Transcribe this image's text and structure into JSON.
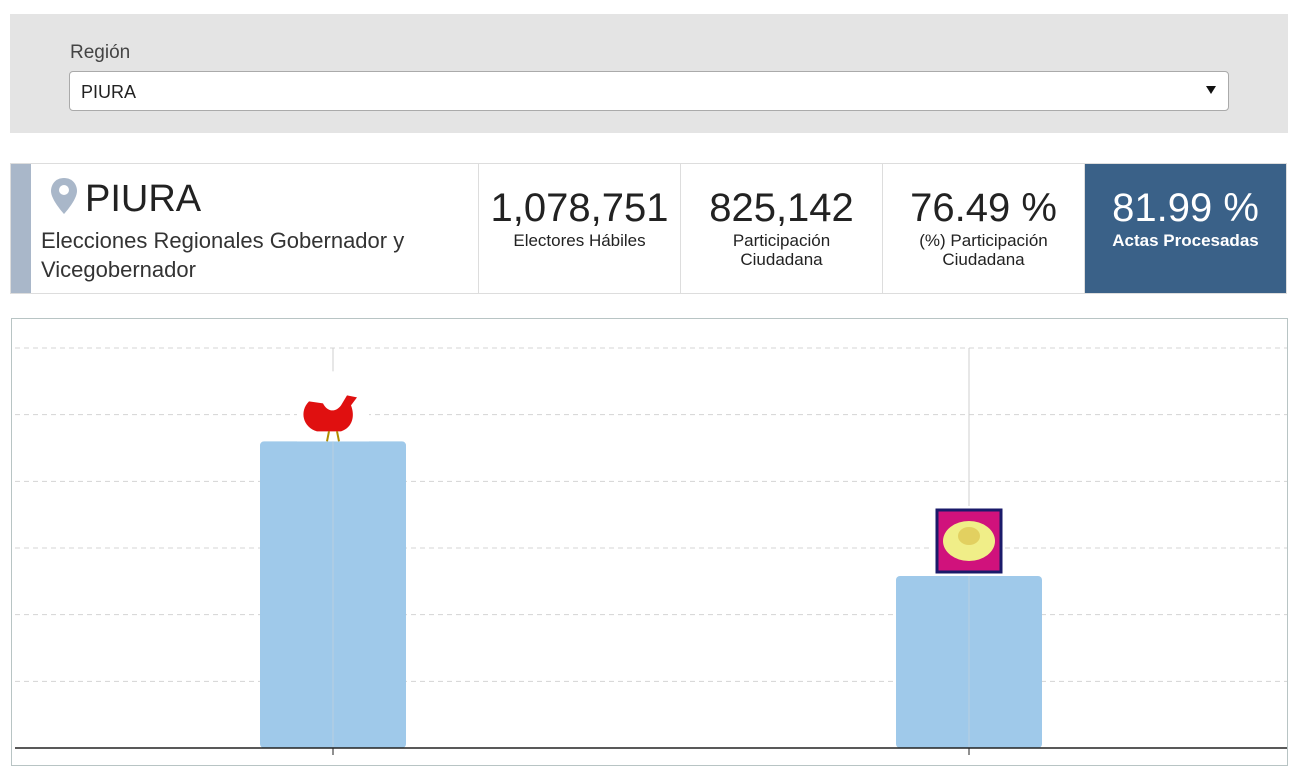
{
  "region": {
    "label": "Región",
    "selected": "PIURA"
  },
  "summary": {
    "place": "PIURA",
    "election": "Elecciones Regionales Gobernador y Vicegobernador",
    "stats": [
      {
        "value": "1,078,751",
        "label": "Electores Hábiles"
      },
      {
        "value": "825,142",
        "label": "Participación Ciudadana"
      },
      {
        "value": "76.49 %",
        "label": "(%) Participación Ciudadana"
      },
      {
        "value": "81.99 %",
        "label": "Actas Procesadas"
      }
    ]
  },
  "chart_data": {
    "type": "bar",
    "categories": [
      null,
      null
    ],
    "values": [
      4.6,
      2.58
    ],
    "color": "#9fc9ea",
    "ylim": [
      0,
      6
    ],
    "yticks": [
      0,
      1,
      2,
      3,
      4,
      5,
      6
    ],
    "grid": true
  }
}
